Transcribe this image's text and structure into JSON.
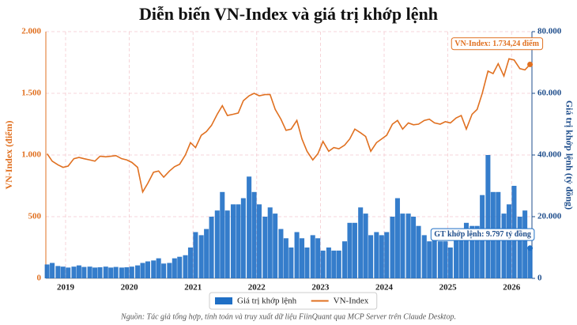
{
  "chart_data": {
    "type": "combo",
    "title": "Diễn biến VN-Index và giá trị khớp lệnh",
    "y_label": "VN-Index (điểm)",
    "y2_label": "Giá trị khớp lệnh (tỷ đồng)",
    "source": "Nguồn: Tác giả tổng hợp, tính toán và truy xuất dữ liệu FiinQuant qua MCP Server trên Claude Desktop.",
    "x": [
      2018.71,
      2018.79,
      2018.88,
      2018.96,
      2019.04,
      2019.13,
      2019.21,
      2019.29,
      2019.38,
      2019.46,
      2019.54,
      2019.63,
      2019.71,
      2019.79,
      2019.88,
      2019.96,
      2020.04,
      2020.13,
      2020.21,
      2020.29,
      2020.38,
      2020.46,
      2020.54,
      2020.63,
      2020.71,
      2020.79,
      2020.88,
      2020.96,
      2021.04,
      2021.13,
      2021.21,
      2021.29,
      2021.38,
      2021.46,
      2021.54,
      2021.63,
      2021.71,
      2021.79,
      2021.88,
      2021.96,
      2022.04,
      2022.13,
      2022.21,
      2022.29,
      2022.38,
      2022.46,
      2022.54,
      2022.63,
      2022.71,
      2022.79,
      2022.88,
      2022.96,
      2023.04,
      2023.13,
      2023.21,
      2023.29,
      2023.38,
      2023.46,
      2023.54,
      2023.63,
      2023.71,
      2023.79,
      2023.88,
      2023.96,
      2024.04,
      2024.13,
      2024.21,
      2024.29,
      2024.38,
      2024.46,
      2024.54,
      2024.63,
      2024.71,
      2024.79,
      2024.88,
      2024.96,
      2025.04,
      2025.13,
      2025.21,
      2025.29,
      2025.38,
      2025.46,
      2025.54,
      2025.63,
      2025.71,
      2025.79,
      2025.88,
      2025.96,
      2026.04,
      2026.13,
      2026.21,
      2026.29
    ],
    "series": [
      {
        "name": "Giá trị khớp lệnh",
        "type": "bar",
        "axis": "y2",
        "color": "#1f6fc5",
        "values": [
          4500,
          5000,
          4000,
          3800,
          3500,
          3800,
          4200,
          3700,
          3800,
          3500,
          3600,
          3800,
          3500,
          3700,
          3500,
          3600,
          3800,
          4200,
          5000,
          5500,
          5800,
          6500,
          4800,
          5000,
          6500,
          7000,
          7500,
          10000,
          15000,
          14000,
          16000,
          20000,
          22000,
          28000,
          22000,
          24000,
          24000,
          26000,
          33000,
          28000,
          24000,
          20000,
          23000,
          21000,
          16000,
          13000,
          10000,
          15000,
          13000,
          10000,
          14000,
          13000,
          9000,
          10000,
          9000,
          9000,
          12000,
          18000,
          18000,
          23000,
          21000,
          14000,
          15000,
          14000,
          15000,
          20000,
          26000,
          21000,
          21000,
          20000,
          17000,
          14000,
          12000,
          13000,
          12000,
          12000,
          10000,
          14000,
          16000,
          18000,
          17000,
          17000,
          27000,
          40000,
          28000,
          28000,
          21000,
          24000,
          30000,
          20000,
          22000,
          9797
        ]
      },
      {
        "name": "VN-Index",
        "type": "line",
        "axis": "y",
        "color": "#e07020",
        "values": [
          1010,
          950,
          920,
          900,
          910,
          970,
          980,
          970,
          960,
          950,
          990,
          985,
          990,
          995,
          970,
          960,
          940,
          900,
          700,
          770,
          860,
          870,
          820,
          870,
          905,
          925,
          1000,
          1100,
          1060,
          1160,
          1190,
          1240,
          1330,
          1400,
          1320,
          1330,
          1340,
          1440,
          1480,
          1500,
          1480,
          1490,
          1490,
          1370,
          1290,
          1200,
          1210,
          1280,
          1130,
          1030,
          960,
          1010,
          1110,
          1030,
          1060,
          1050,
          1080,
          1130,
          1210,
          1180,
          1150,
          1030,
          1100,
          1130,
          1160,
          1250,
          1280,
          1210,
          1260,
          1245,
          1250,
          1280,
          1290,
          1260,
          1250,
          1270,
          1260,
          1300,
          1320,
          1210,
          1330,
          1370,
          1500,
          1680,
          1660,
          1740,
          1640,
          1780,
          1770,
          1700,
          1690,
          1734.24
        ]
      }
    ],
    "annotations": [
      "VN-Index: 1.734,24 điểm",
      "GT khớp lệnh: 9.797 tỷ đồng"
    ],
    "xlim": [
      2018.69,
      2026.32
    ],
    "xticks": [
      2019,
      2020,
      2021,
      2022,
      2023,
      2024,
      2025,
      2026
    ],
    "ylim": [
      0,
      2000
    ],
    "yticks": [
      0,
      500,
      {
        "value": 1000,
        "label": "1.000"
      },
      {
        "value": 1500,
        "label": "1.500"
      },
      {
        "value": 2000,
        "label": "2.000"
      }
    ],
    "y2lim": [
      0,
      80000
    ],
    "y2ticks": [
      0,
      {
        "value": 20000,
        "label": "20.000"
      },
      {
        "value": 40000,
        "label": "40.000"
      },
      {
        "value": 60000,
        "label": "60.000"
      },
      {
        "value": 80000,
        "label": "80.000"
      }
    ],
    "grid": true,
    "legend": "bottom"
  }
}
